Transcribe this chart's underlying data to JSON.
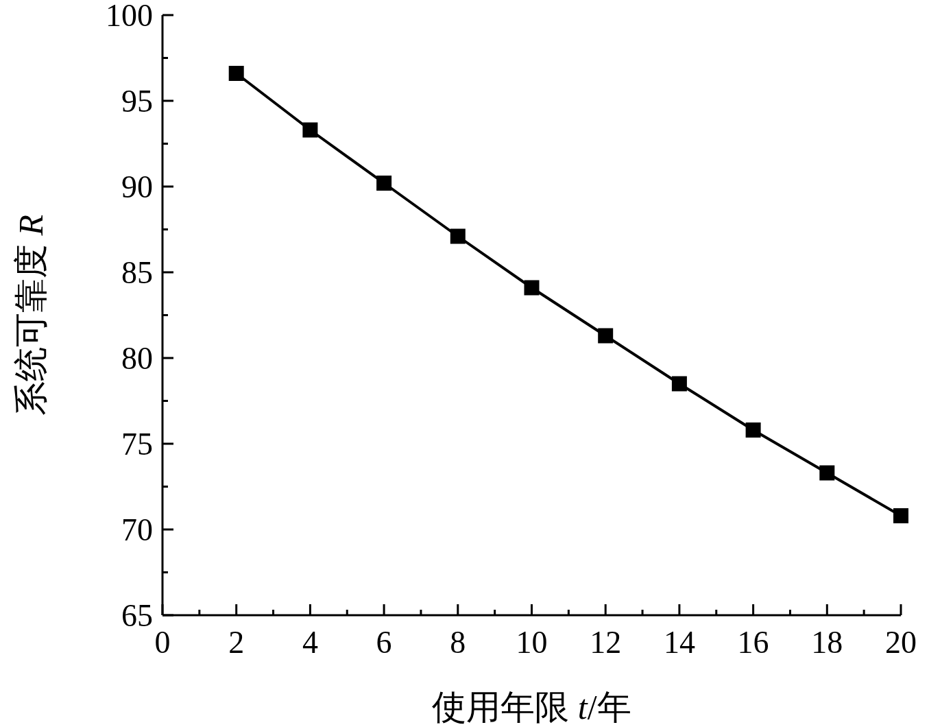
{
  "chart_data": {
    "type": "line",
    "xlabel": "使用年限 t/年",
    "ylabel": "系统可靠度 R",
    "x": [
      2,
      4,
      6,
      8,
      10,
      12,
      14,
      16,
      18,
      20
    ],
    "series": [
      {
        "color": "#000000",
        "values": [
          96.6,
          93.3,
          90.2,
          87.1,
          84.1,
          81.3,
          78.5,
          75.8,
          73.3,
          70.8
        ]
      }
    ],
    "xlim": [
      0,
      20
    ],
    "xticks": [
      0,
      {
        "value": 1,
        "label": null
      },
      2,
      {
        "value": 3,
        "label": null
      },
      4,
      {
        "value": 5,
        "label": null
      },
      6,
      {
        "value": 7,
        "label": null
      },
      8,
      {
        "value": 9,
        "label": null
      },
      10,
      {
        "value": 11,
        "label": null
      },
      12,
      {
        "value": 13,
        "label": null
      },
      14,
      {
        "value": 15,
        "label": null
      },
      16,
      {
        "value": 17,
        "label": null
      },
      18,
      {
        "value": 19,
        "label": null
      },
      20
    ],
    "ylim": [
      65,
      100
    ],
    "yticks": [
      65,
      {
        "value": 67.5,
        "label": null
      },
      70,
      {
        "value": 72.5,
        "label": null
      },
      75,
      {
        "value": 77.5,
        "label": null
      },
      80,
      {
        "value": 82.5,
        "label": null
      },
      85,
      {
        "value": 87.5,
        "label": null
      },
      90,
      {
        "value": 92.5,
        "label": null
      },
      95,
      {
        "value": 97.5,
        "label": null
      },
      100
    ],
    "marker": "square",
    "line_style": "solid",
    "grid": false
  }
}
